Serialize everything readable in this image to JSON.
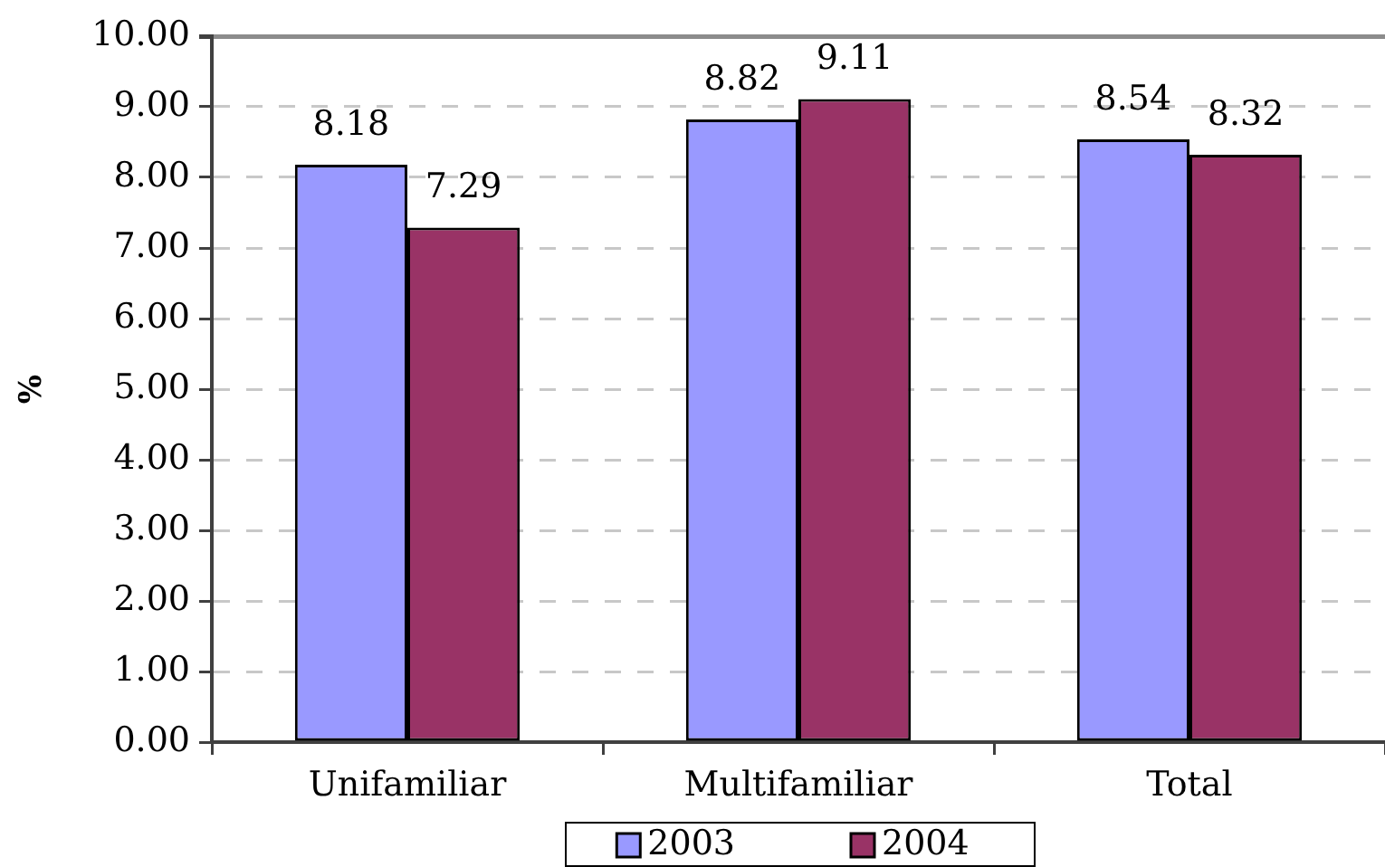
{
  "chart_data": {
    "type": "bar",
    "ylabel": "%",
    "categories": [
      "Unifamiliar",
      "Multifamiliar",
      "Total"
    ],
    "series": [
      {
        "name": "2003",
        "color": "#9999ff",
        "values": [
          8.18,
          8.82,
          8.54
        ]
      },
      {
        "name": "2004",
        "color": "#993366",
        "values": [
          7.29,
          9.11,
          8.32
        ]
      }
    ],
    "ylim": [
      0,
      10
    ],
    "yticks": [
      {
        "value": 0,
        "label": "0.00"
      },
      {
        "value": 1,
        "label": "1.00"
      },
      {
        "value": 2,
        "label": "2.00"
      },
      {
        "value": 3,
        "label": "3.00"
      },
      {
        "value": 4,
        "label": "4.00"
      },
      {
        "value": 5,
        "label": "5.00"
      },
      {
        "value": 6,
        "label": "6.00"
      },
      {
        "value": 7,
        "label": "7.00"
      },
      {
        "value": 8,
        "label": "8.00"
      },
      {
        "value": 9,
        "label": "9.00"
      },
      {
        "value": 10,
        "label": "10.00"
      }
    ],
    "grid": "y",
    "legend": "bottom",
    "data_labels": true
  }
}
